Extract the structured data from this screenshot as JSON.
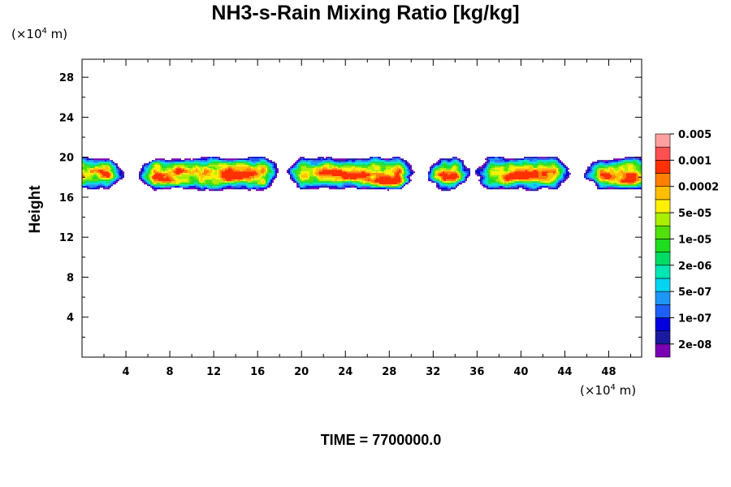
{
  "chart_data": {
    "type": "contour",
    "title": "NH3-s-Rain Mixing Ratio [kg/kg]",
    "ylabel": "Height",
    "xunit_prefix": "(×10",
    "xunit_exp": "4",
    "xunit_suffix": " m)",
    "yunit_prefix": "(×10",
    "yunit_exp": "4",
    "yunit_suffix": " m)",
    "xlim": [
      0,
      51
    ],
    "ylim": [
      0,
      29.8
    ],
    "xticks": [
      4,
      8,
      12,
      16,
      20,
      24,
      28,
      32,
      36,
      40,
      44,
      48
    ],
    "yticks": [
      4,
      8,
      12,
      16,
      20,
      24,
      28
    ],
    "time_label": "TIME = 7700000.0",
    "cloud_layer": {
      "bottom_km4": 16.7,
      "top_km4": 19.8,
      "gaps": [
        [
          3.8,
          5.2
        ],
        [
          18.0,
          18.6
        ],
        [
          30.3,
          31.5
        ],
        [
          35.4,
          35.8
        ],
        [
          44.5,
          45.8
        ]
      ],
      "max_near": [
        28.2,
        17.6
      ]
    },
    "colorbar": {
      "colors": [
        "#7a00b4",
        "#1a1aa0",
        "#0000e0",
        "#1e5ff5",
        "#1e96f5",
        "#00d4f0",
        "#00e6b4",
        "#00dc64",
        "#1edc1e",
        "#52e00a",
        "#aaee00",
        "#ffef00",
        "#ffbf00",
        "#ff7f00",
        "#ff3000",
        "#ff5050",
        "#ffa0a0"
      ],
      "labels": [
        "2e-08",
        "1e-07",
        "5e-07",
        "2e-06",
        "1e-05",
        "5e-05",
        "0.0002",
        "0.001",
        "0.005"
      ]
    }
  }
}
